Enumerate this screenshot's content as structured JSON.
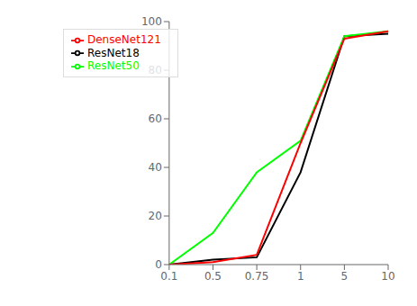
{
  "chart_data": {
    "type": "line",
    "categories": [
      "0.1",
      "0.5",
      "0.75",
      "1",
      "5",
      "10"
    ],
    "series": [
      {
        "name": "ResNet18",
        "color": "black",
        "values": [
          0,
          2,
          3,
          38,
          94,
          95
        ]
      },
      {
        "name": "ResNet50",
        "color": "lime",
        "values": [
          0,
          13,
          38,
          51,
          94,
          96
        ]
      },
      {
        "name": "DenseNet121",
        "color": "red",
        "values": [
          0,
          1,
          4,
          50,
          93,
          96
        ]
      }
    ],
    "ylim": [
      0,
      100
    ],
    "yticks": [
      0,
      20,
      40,
      60,
      80,
      100
    ],
    "legend": "upper left",
    "grid": false
  }
}
